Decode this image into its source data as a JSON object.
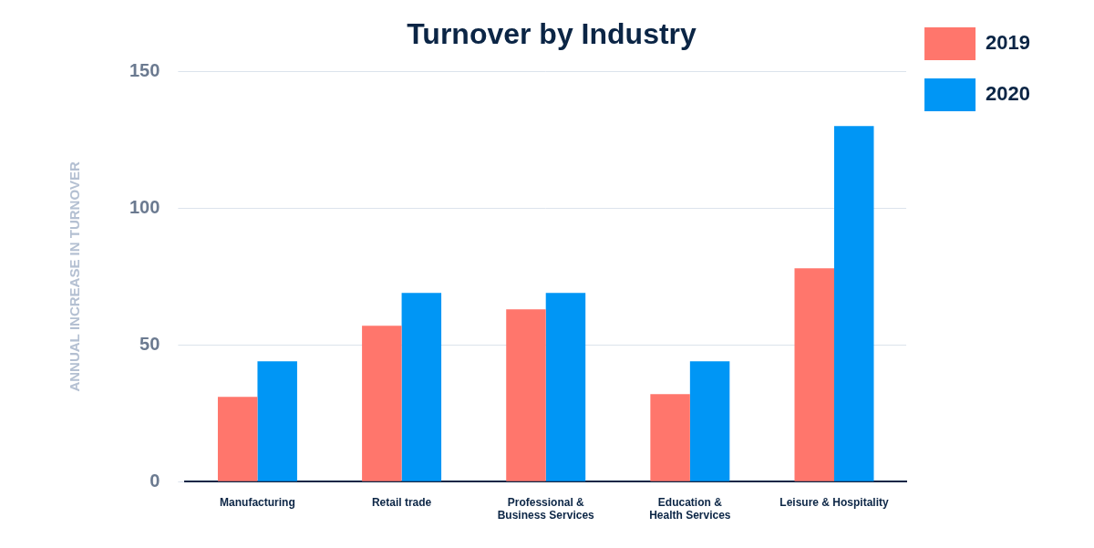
{
  "chart_data": {
    "type": "bar",
    "title": "Turnover by Industry",
    "y_label": "ANNUAL INCREASE IN TURNOVER",
    "categories": [
      "Manufacturing",
      "Retail trade",
      [
        "Professional &",
        "Business Services"
      ],
      [
        "Education &",
        "Health Services"
      ],
      "Leisure & Hospitality"
    ],
    "series": [
      {
        "name": "2019",
        "color": "#ff766c",
        "values": [
          31,
          57,
          63,
          32,
          78
        ]
      },
      {
        "name": "2020",
        "color": "#0096f5",
        "values": [
          44,
          69,
          69,
          44,
          130
        ]
      }
    ],
    "ylim": [
      0,
      150
    ],
    "yticks": [
      0,
      50,
      100,
      150
    ],
    "grid": true,
    "legend": "right"
  }
}
